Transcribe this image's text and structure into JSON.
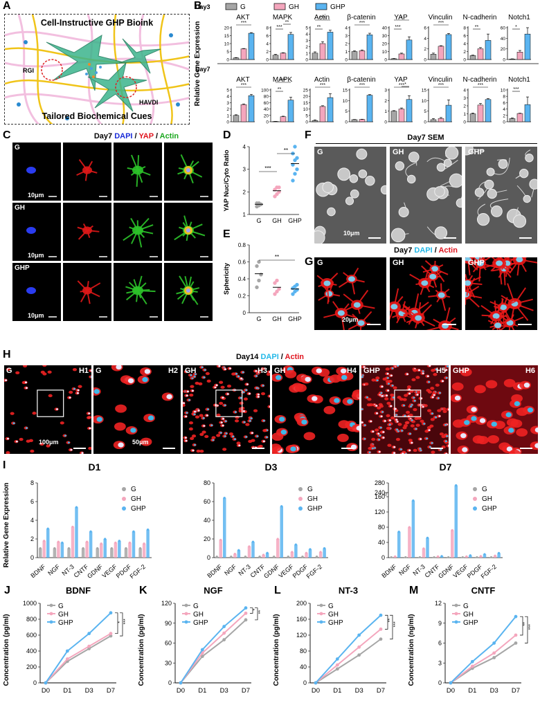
{
  "panels": {
    "A": {
      "label": "A",
      "title": "Cell-Instructive GHP Bioink",
      "footer": "Tailored Biochemical Cues",
      "tag_left": "RGI",
      "tag_right": "HAVDI"
    },
    "B": {
      "label": "B",
      "ylabel": "Relative Gene Expression",
      "legend": [
        "G",
        "GH",
        "GHP"
      ],
      "row1_day": "Day3",
      "row2_day": "Day7"
    },
    "C": {
      "label": "C",
      "title_parts": [
        "Day7 ",
        "DAPI",
        " / ",
        "YAP",
        " / ",
        "Actin"
      ],
      "rows": [
        "G",
        "GH",
        "GHP"
      ],
      "scale": "10μm"
    },
    "D": {
      "label": "D",
      "ylabel": "YAP Nuc/Cyto Ratio"
    },
    "E": {
      "label": "E",
      "ylabel": "Sphericity"
    },
    "F": {
      "label": "F",
      "title": "Day7 SEM",
      "tiles": [
        "G",
        "GH",
        "GHP"
      ],
      "scale": "10μm"
    },
    "G": {
      "label": "G",
      "title_parts": [
        "Day7 ",
        "DAPI",
        " / ",
        "Actin"
      ],
      "tiles": [
        "G",
        "GH",
        "GHP"
      ],
      "scale": "20μm"
    },
    "H": {
      "label": "H",
      "title_parts": [
        "Day14 ",
        "DAPI",
        " / ",
        "Actin"
      ],
      "tiles": [
        {
          "left": "G",
          "right": "H1"
        },
        {
          "left": "G",
          "right": "H2"
        },
        {
          "left": "GH",
          "right": "H3"
        },
        {
          "left": "GH",
          "right": "H4"
        },
        {
          "left": "GHP",
          "right": "H5"
        },
        {
          "left": "GHP",
          "right": "H6"
        }
      ],
      "scale1": "100μm",
      "scale2": "50μm"
    },
    "I": {
      "label": "I",
      "ylabel": "Relative Gene Expression"
    },
    "J": {
      "label": "J",
      "title": "BDNF",
      "ylabel": "Concentration (pg/ml)"
    },
    "K": {
      "label": "K",
      "title": "NGF",
      "ylabel": "Concentration (pg/ml)"
    },
    "L": {
      "label": "L",
      "title": "NT-3",
      "ylabel": "Concentration (pg/ml)"
    },
    "M": {
      "label": "M",
      "title": "CNTF",
      "ylabel": "Concentration (ng/ml)"
    }
  },
  "colors": {
    "G": "#a6a6a6",
    "GH": "#f4a6bd",
    "GHP": "#5ab4f0"
  },
  "chart_data": [
    {
      "id": "B-day3",
      "type": "bar",
      "panel": "B",
      "day": "Day3",
      "series_names": [
        "G",
        "GH",
        "GHP"
      ],
      "subplots": [
        {
          "title": "AKT",
          "ylim": [
            0,
            20
          ],
          "ticks": [
            0,
            5,
            10,
            15,
            20
          ],
          "values": [
            1,
            6.7,
            16.5
          ],
          "errors": [
            0.2,
            0.2,
            0.4
          ],
          "sig": [
            {
              "text": "***",
              "from": 0,
              "to": 2
            }
          ]
        },
        {
          "title": "MAPK",
          "ylim": [
            0,
            8
          ],
          "ticks": [
            0,
            2,
            4,
            6,
            8
          ],
          "values": [
            1.1,
            1.6,
            6.3
          ],
          "errors": [
            0.2,
            0.1,
            0.5
          ],
          "sig": [
            {
              "text": "***",
              "from": 0,
              "to": 1
            },
            {
              "text": "**",
              "from": 1,
              "to": 2
            }
          ]
        },
        {
          "title": "Actin",
          "ylim": [
            0,
            5
          ],
          "ticks": [
            0,
            1,
            2,
            3,
            4,
            5
          ],
          "values": [
            1,
            2.5,
            4.3
          ],
          "errors": [
            0.2,
            0.3,
            0.3
          ],
          "sig": [
            {
              "text": "**",
              "from": 0,
              "to": 1
            },
            {
              "text": "***",
              "from": 0,
              "to": 2
            }
          ]
        },
        {
          "title": "β-catenin",
          "ylim": [
            0,
            4
          ],
          "ticks": [
            0,
            1,
            2,
            3,
            4
          ],
          "values": [
            1,
            1.1,
            3.1
          ],
          "errors": [
            0.1,
            0.1,
            0.2
          ],
          "sig": [
            {
              "text": "***",
              "from": 0,
              "to": 2
            }
          ]
        },
        {
          "title": "YAP",
          "ylim": [
            0,
            40
          ],
          "ticks": [
            0,
            10,
            20,
            30,
            40
          ],
          "values": [
            1,
            7,
            24.5
          ],
          "errors": [
            0.3,
            1,
            4
          ],
          "sig": [
            {
              "text": "***",
              "from": 0,
              "to": 1
            },
            {
              "text": "*",
              "from": 0,
              "to": 2
            }
          ]
        },
        {
          "title": "Vinculin",
          "ylim": [
            0,
            6
          ],
          "ticks": [
            0,
            2,
            4,
            6
          ],
          "values": [
            1,
            2.5,
            4.7
          ],
          "errors": [
            0.2,
            0.1,
            0.2
          ],
          "sig": [
            {
              "text": "***",
              "from": 0,
              "to": 2
            }
          ]
        },
        {
          "title": "N-cadherin",
          "ylim": [
            0,
            8
          ],
          "ticks": [
            0,
            2,
            4,
            6,
            8
          ],
          "values": [
            1,
            2.7,
            4.8
          ],
          "errors": [
            0.1,
            0.3,
            1.6
          ],
          "sig": [
            {
              "text": "**",
              "from": 0,
              "to": 1
            }
          ]
        },
        {
          "title": "Notch1",
          "ylim": [
            0,
            60
          ],
          "ticks": [
            0,
            20,
            40,
            60
          ],
          "values": [
            1,
            14,
            48
          ],
          "errors": [
            0.3,
            3,
            15
          ],
          "sig": [
            {
              "text": "*",
              "from": 0,
              "to": 1
            }
          ]
        }
      ]
    },
    {
      "id": "B-day7",
      "type": "bar",
      "panel": "B",
      "day": "Day7",
      "series_names": [
        "G",
        "GH",
        "GHP"
      ],
      "subplots": [
        {
          "title": "AKT",
          "ylim": [
            0,
            5
          ],
          "ticks": [
            0,
            1,
            2,
            3,
            4,
            5
          ],
          "values": [
            1,
            2.7,
            4.1
          ],
          "errors": [
            0.1,
            0.1,
            0.2
          ],
          "sig": [
            {
              "text": "***",
              "from": 0,
              "to": 2
            }
          ]
        },
        {
          "title": "MAPK",
          "ylim": [
            0,
            100
          ],
          "ticks": [
            0,
            20,
            40,
            60,
            80,
            100
          ],
          "values": [
            1,
            16,
            68
          ],
          "errors": [
            0.2,
            1.5,
            9
          ],
          "sig": [
            {
              "text": "**",
              "from": 0,
              "to": 1
            },
            {
              "text": "***",
              "from": 0,
              "to": 2
            }
          ]
        },
        {
          "title": "Actin",
          "ylim": [
            0,
            25
          ],
          "ticks": [
            0,
            5,
            10,
            15,
            20,
            25
          ],
          "values": [
            1,
            12,
            19
          ],
          "errors": [
            0.5,
            0.6,
            3
          ],
          "sig": [
            {
              "text": "***",
              "from": 0,
              "to": 2
            }
          ]
        },
        {
          "title": "β-catenin",
          "ylim": [
            0,
            15
          ],
          "ticks": [
            0,
            5,
            10,
            15
          ],
          "values": [
            1,
            1.1,
            12.5
          ],
          "errors": [
            0.1,
            0.1,
            0.3
          ],
          "sig": [
            {
              "text": "***",
              "from": 0,
              "to": 2
            }
          ]
        },
        {
          "title": "YAP",
          "ylim": [
            0,
            3
          ],
          "ticks": [
            0,
            1,
            2,
            3
          ],
          "values": [
            1,
            1.2,
            2.1
          ],
          "errors": [
            0.05,
            0.1,
            0.35
          ],
          "sig": [
            {
              "text": "***",
              "from": 0,
              "to": 2
            },
            {
              "text": "*",
              "from": 1,
              "to": 2
            }
          ]
        },
        {
          "title": "Vinculin",
          "ylim": [
            0,
            15
          ],
          "ticks": [
            0,
            5,
            10,
            15
          ],
          "values": [
            1,
            1.5,
            7.8
          ],
          "errors": [
            0.5,
            0.5,
            2.5
          ],
          "sig": [
            {
              "text": "***",
              "from": 0,
              "to": 2
            }
          ]
        },
        {
          "title": "N-cadherin",
          "ylim": [
            0,
            4
          ],
          "ticks": [
            0,
            1,
            2,
            3,
            4
          ],
          "values": [
            1,
            2.1,
            2.8
          ],
          "errors": [
            0.1,
            0.2,
            0.1
          ],
          "sig": [
            {
              "text": "***",
              "from": 0,
              "to": 2
            }
          ]
        },
        {
          "title": "Notch1",
          "ylim": [
            0,
            10
          ],
          "ticks": [
            0,
            2,
            4,
            6,
            8,
            10
          ],
          "values": [
            1,
            2.6,
            5.4
          ],
          "errors": [
            0.2,
            0.1,
            2.4
          ],
          "sig": [
            {
              "text": "***",
              "from": 0,
              "to": 1
            }
          ]
        }
      ]
    },
    {
      "id": "D",
      "type": "scatter",
      "panel": "D",
      "categories": [
        "G",
        "GH",
        "GHP"
      ],
      "ylim": [
        1,
        4
      ],
      "ticks": [
        1,
        2,
        3,
        4
      ],
      "points": [
        [
          1.35,
          1.4,
          1.45,
          1.5,
          1.5
        ],
        [
          1.8,
          1.9,
          2.0,
          2.1,
          2.2,
          2.2
        ],
        [
          2.5,
          2.8,
          3.0,
          3.2,
          3.4,
          3.5,
          3.7,
          4.0
        ]
      ],
      "means": [
        1.45,
        2.05,
        3.25
      ],
      "sig": [
        {
          "text": "***",
          "from": 0,
          "to": 1
        },
        {
          "text": "**",
          "from": 1,
          "to": 2
        }
      ]
    },
    {
      "id": "E",
      "type": "scatter",
      "panel": "E",
      "categories": [
        "G",
        "GH",
        "GHP"
      ],
      "ylim": [
        0,
        0.8
      ],
      "ticks": [
        0,
        0.2,
        0.4,
        0.6,
        0.8
      ],
      "points": [
        [
          0.3,
          0.38,
          0.45,
          0.55,
          0.6
        ],
        [
          0.22,
          0.25,
          0.28,
          0.35,
          0.38
        ],
        [
          0.22,
          0.25,
          0.27,
          0.29,
          0.31,
          0.33
        ]
      ],
      "means": [
        0.46,
        0.3,
        0.28
      ],
      "sig": [
        {
          "text": "**",
          "from": 0,
          "to": 2
        }
      ]
    },
    {
      "id": "I-D1",
      "type": "bar",
      "panel": "I",
      "title": "D1",
      "ylim": [
        0,
        8
      ],
      "ticks": [
        0,
        2,
        4,
        6,
        8
      ],
      "categories": [
        "BDNF",
        "NGF",
        "NT-3",
        "CNTF",
        "GDNF",
        "VEGF",
        "PDGF",
        "FGF-2"
      ],
      "series": [
        {
          "name": "G",
          "values": [
            1,
            1,
            1,
            1,
            1,
            1,
            1,
            1
          ]
        },
        {
          "name": "GH",
          "values": [
            1.8,
            1.7,
            3.3,
            1.7,
            1.5,
            1.6,
            1.6,
            1.5
          ]
        },
        {
          "name": "GHP",
          "values": [
            3.1,
            1.6,
            5.4,
            2.8,
            2.0,
            1.8,
            2.8,
            3.0
          ]
        }
      ]
    },
    {
      "id": "I-D3",
      "type": "bar",
      "panel": "I",
      "title": "D3",
      "ylim": [
        0,
        80
      ],
      "ticks": [
        0,
        20,
        40,
        60,
        80
      ],
      "categories": [
        "BDNF",
        "NGF",
        "NT-3",
        "CNTF",
        "GDNF",
        "VEGF",
        "PDGF",
        "FGF-2"
      ],
      "series": [
        {
          "name": "G",
          "values": [
            1,
            1,
            1,
            1,
            1,
            1,
            1,
            1
          ]
        },
        {
          "name": "GH",
          "values": [
            19,
            4,
            12,
            3,
            20,
            6,
            5,
            6
          ]
        },
        {
          "name": "GHP",
          "values": [
            64,
            8,
            17,
            5,
            55,
            14,
            9,
            10
          ]
        }
      ]
    },
    {
      "id": "I-D7",
      "type": "bar",
      "panel": "I",
      "title": "D7",
      "ylim": [
        0,
        280
      ],
      "ticks": [
        0,
        40,
        80,
        120,
        160,
        240,
        280
      ],
      "axis_break": [
        160,
        240
      ],
      "categories": [
        "BDNF",
        "NGF",
        "NT-3",
        "CNTF",
        "GDNF",
        "VEGF",
        "PDGF",
        "FGF-2"
      ],
      "series": [
        {
          "name": "G",
          "values": [
            1,
            1,
            1,
            1,
            1,
            1,
            1,
            1
          ]
        },
        {
          "name": "GH",
          "values": [
            3,
            80,
            24,
            3,
            72,
            3,
            4,
            5
          ]
        },
        {
          "name": "GHP",
          "values": [
            68,
            150,
            52,
            4,
            270,
            6,
            9,
            12
          ]
        }
      ]
    },
    {
      "id": "J",
      "type": "line",
      "panel": "J",
      "title": "BDNF",
      "ylim": [
        0,
        1000
      ],
      "ticks": [
        0,
        200,
        400,
        600,
        800,
        1000
      ],
      "x": [
        "D0",
        "D1",
        "D3",
        "D7"
      ],
      "series": [
        {
          "name": "G",
          "values": [
            0,
            270,
            430,
            590
          ]
        },
        {
          "name": "GH",
          "values": [
            0,
            300,
            460,
            620
          ]
        },
        {
          "name": "GHP",
          "values": [
            0,
            400,
            620,
            880
          ]
        }
      ],
      "sig": [
        "*",
        "***"
      ]
    },
    {
      "id": "K",
      "type": "line",
      "panel": "K",
      "title": "NGF",
      "ylim": [
        0,
        120
      ],
      "ticks": [
        0,
        30,
        60,
        90,
        120
      ],
      "x": [
        "D0",
        "D1",
        "D3",
        "D7"
      ],
      "series": [
        {
          "name": "G",
          "values": [
            0,
            40,
            65,
            95
          ]
        },
        {
          "name": "GH",
          "values": [
            0,
            45,
            75,
            105
          ]
        },
        {
          "name": "GHP",
          "values": [
            0,
            50,
            85,
            113
          ]
        }
      ],
      "sig": [
        "*",
        "**"
      ]
    },
    {
      "id": "L",
      "type": "line",
      "panel": "L",
      "title": "NT-3",
      "ylim": [
        0,
        200
      ],
      "ticks": [
        0,
        40,
        80,
        120,
        160,
        200
      ],
      "x": [
        "D0",
        "D1",
        "D3",
        "D7"
      ],
      "series": [
        {
          "name": "G",
          "values": [
            0,
            35,
            70,
            110
          ]
        },
        {
          "name": "GH",
          "values": [
            0,
            45,
            90,
            135
          ]
        },
        {
          "name": "GHP",
          "values": [
            0,
            60,
            120,
            170
          ]
        }
      ],
      "sig": [
        "**",
        "***"
      ]
    },
    {
      "id": "M",
      "type": "line",
      "panel": "M",
      "title": "CNTF",
      "ylim": [
        0,
        12
      ],
      "ticks": [
        0,
        3,
        6,
        9,
        12
      ],
      "x": [
        "D0",
        "D1",
        "D3",
        "D7"
      ],
      "series": [
        {
          "name": "G",
          "values": [
            0,
            2.2,
            3.8,
            6
          ]
        },
        {
          "name": "GH",
          "values": [
            0,
            2.5,
            4.5,
            7.2
          ]
        },
        {
          "name": "GHP",
          "values": [
            0,
            3.2,
            6,
            10
          ]
        }
      ],
      "sig": [
        "**",
        "***"
      ]
    }
  ]
}
